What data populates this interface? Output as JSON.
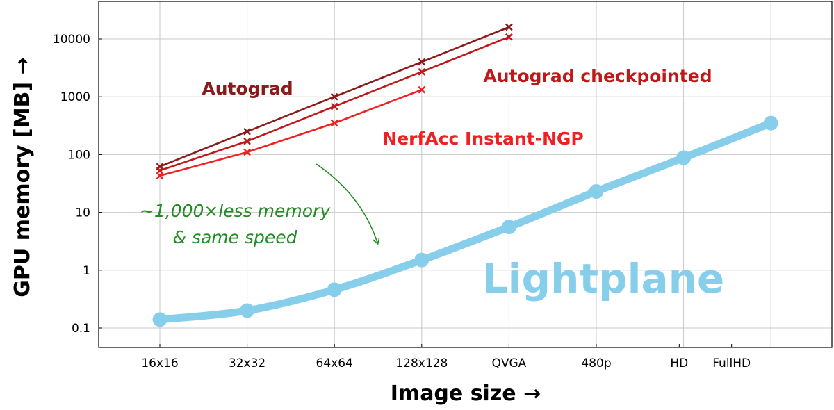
{
  "chart_data": {
    "type": "line",
    "xlabel": "Image size →",
    "ylabel": "GPU memory [MB] →",
    "y_scale": "log",
    "ylim": [
      0.07,
      30000
    ],
    "grid": true,
    "categories": [
      "16x16",
      "32x32",
      "64x64",
      "128x128",
      "QVGA",
      "480p",
      "HD",
      "FullHD"
    ],
    "category_label_positions": [
      0,
      1,
      2,
      3,
      4,
      5,
      5.95,
      6.55
    ],
    "y_ticks": [
      {
        "value": 0.1,
        "label": "0.1"
      },
      {
        "value": 1,
        "label": "1"
      },
      {
        "value": 10,
        "label": "10"
      },
      {
        "value": 100,
        "label": "100"
      },
      {
        "value": 1000,
        "label": "1000"
      },
      {
        "value": 10000,
        "label": "10000"
      }
    ],
    "series": [
      {
        "name": "Autograd",
        "color": "#8b1a1a",
        "marker": "x",
        "points": [
          [
            0,
            62
          ],
          [
            1,
            250
          ],
          [
            2,
            1000
          ],
          [
            3,
            4000
          ],
          [
            4,
            16000
          ]
        ]
      },
      {
        "name": "Autograd checkpointed",
        "color": "#c01818",
        "marker": "x",
        "points": [
          [
            0,
            53
          ],
          [
            1,
            170
          ],
          [
            2,
            680
          ],
          [
            3,
            2700
          ],
          [
            4,
            10800
          ]
        ]
      },
      {
        "name": "NerfAcc Instant-NGP",
        "color": "#ee2020",
        "marker": "x",
        "points": [
          [
            0,
            43
          ],
          [
            1,
            110
          ],
          [
            2,
            350
          ],
          [
            3,
            1320
          ]
        ]
      },
      {
        "name": "Lightplane",
        "color": "#87ceeb",
        "marker": "circle",
        "points": [
          [
            0,
            0.14
          ],
          [
            1,
            0.2
          ],
          [
            2,
            0.46
          ],
          [
            3,
            1.5
          ],
          [
            4,
            5.6
          ],
          [
            5,
            23
          ],
          [
            6,
            88
          ],
          [
            7,
            350
          ]
        ]
      }
    ],
    "annotation": {
      "line1": "~1,000×less memory",
      "line2": "& same speed",
      "color": "#228b22"
    }
  }
}
